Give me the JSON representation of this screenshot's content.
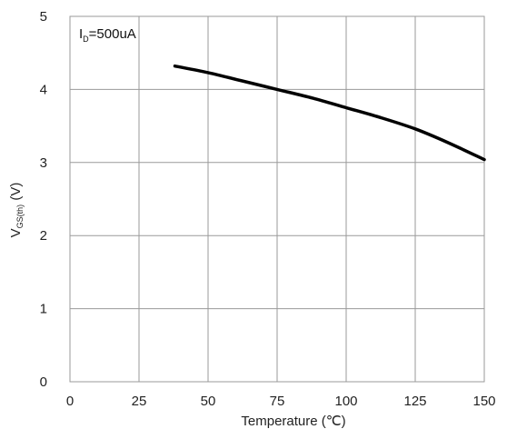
{
  "chart_data": {
    "type": "line",
    "xlabel": "Temperature (℃)",
    "ylabel_main": "V",
    "ylabel_sub": "GS(th)",
    "ylabel_unit": " (V)",
    "annotation_main": "I",
    "annotation_sub": "D",
    "annotation_rest": "=500uA",
    "xlim": [
      0,
      150
    ],
    "ylim": [
      0,
      5
    ],
    "xticks": [
      "0",
      "25",
      "50",
      "75",
      "100",
      "125",
      "150"
    ],
    "yticks": [
      "0",
      "1",
      "2",
      "3",
      "4",
      "5"
    ],
    "grid": true,
    "series": [
      {
        "x": [
          38,
          50,
          62,
          75,
          88,
          100,
          112,
          125,
          137,
          150
        ],
        "y": [
          4.32,
          4.23,
          4.12,
          4.0,
          3.88,
          3.75,
          3.62,
          3.46,
          3.27,
          3.04
        ]
      }
    ]
  }
}
